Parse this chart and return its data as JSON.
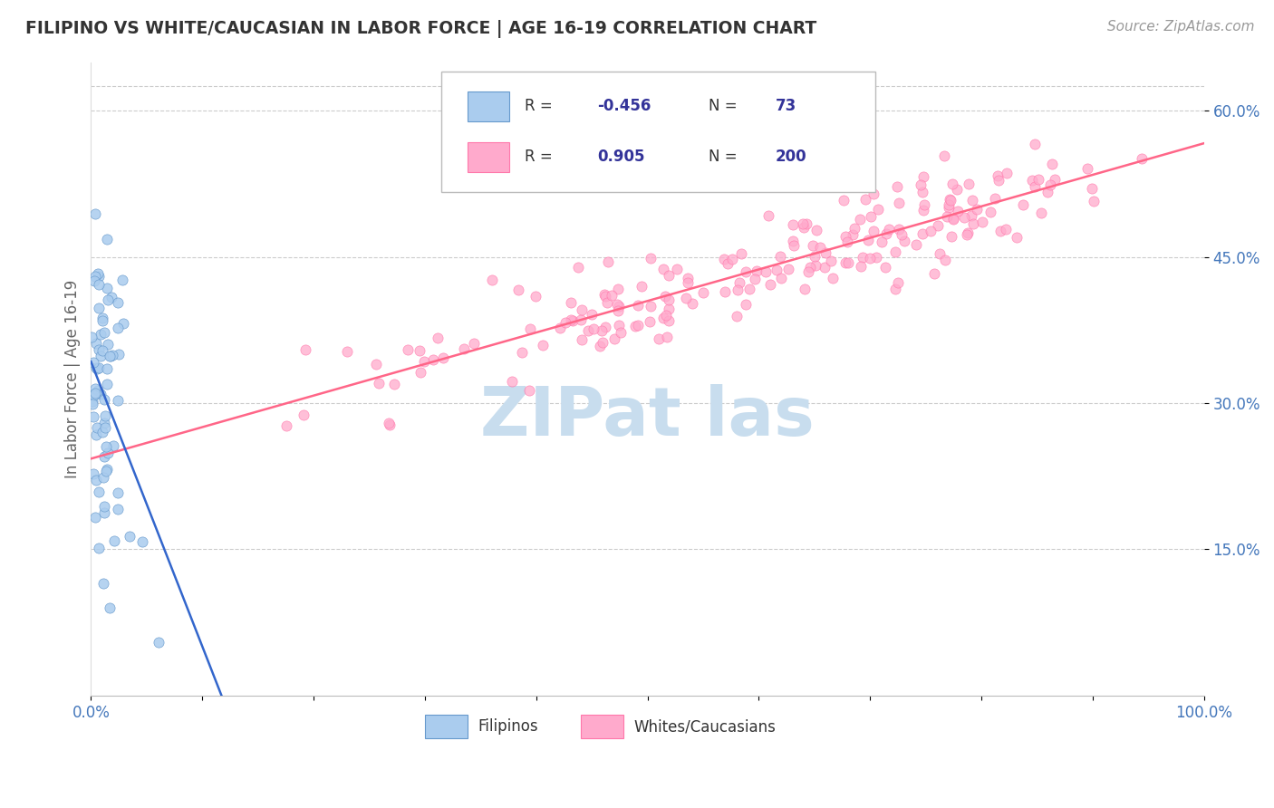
{
  "title": "FILIPINO VS WHITE/CAUCASIAN IN LABOR FORCE | AGE 16-19 CORRELATION CHART",
  "source": "Source: ZipAtlas.com",
  "ylabel": "In Labor Force | Age 16-19",
  "r_filipino": -0.456,
  "n_filipino": 73,
  "r_white": 0.905,
  "n_white": 200,
  "filipino_color": "#AACCEE",
  "filipino_edge_color": "#6699CC",
  "white_color": "#FFAACC",
  "white_edge_color": "#FF77AA",
  "filipino_line_color": "#3366CC",
  "white_line_color": "#FF6688",
  "title_color": "#333333",
  "axis_label_color": "#4477BB",
  "background_color": "#FFFFFF",
  "grid_color": "#CCCCCC",
  "watermark_color": "#C8DDEE",
  "legend_text_color": "#333399",
  "xlim": [
    0.0,
    1.0
  ],
  "ylim": [
    0.0,
    0.65
  ],
  "y_tick_values": [
    0.15,
    0.3,
    0.45,
    0.6
  ],
  "y_tick_labels": [
    "15.0%",
    "30.0%",
    "45.0%",
    "60.0%"
  ],
  "filipino_seed": 42,
  "white_seed": 7
}
